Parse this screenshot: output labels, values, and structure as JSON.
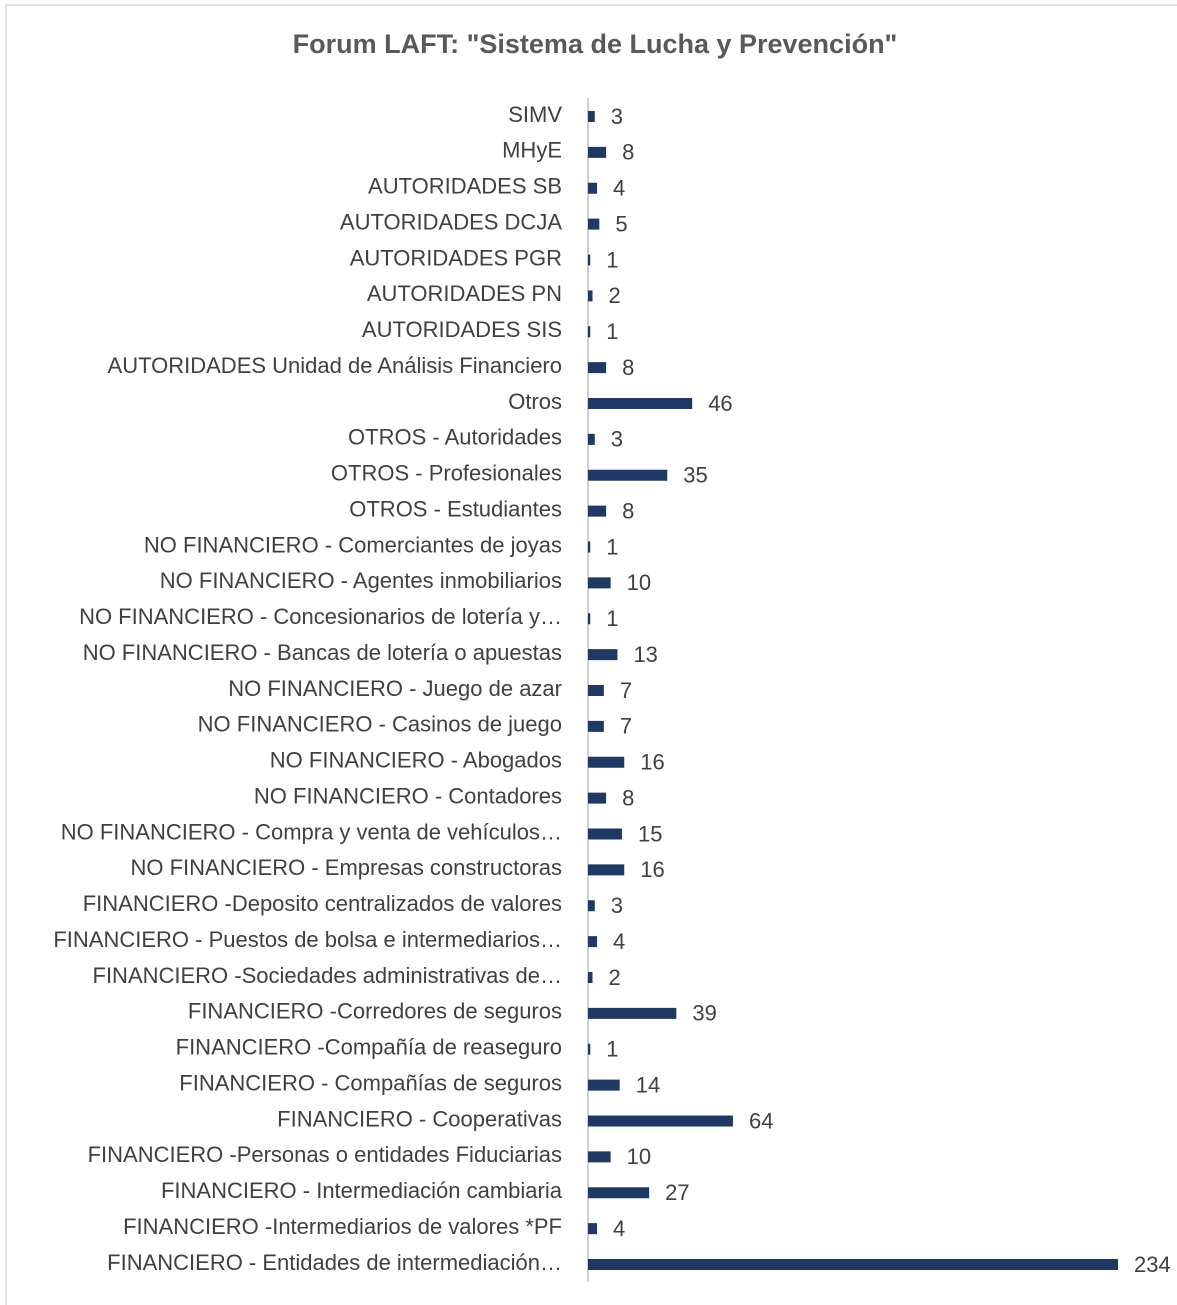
{
  "chart_data": {
    "type": "barh",
    "title": "Forum LAFT: \"Sistema de Lucha y Prevención\"",
    "categories": [
      "SIMV",
      "MHyE",
      "AUTORIDADES  SB",
      "AUTORIDADES DCJA",
      "AUTORIDADES PGR",
      "AUTORIDADES PN",
      "AUTORIDADES SIS",
      "AUTORIDADES Unidad de Análisis Financiero",
      "Otros",
      "OTROS - Autoridades",
      "OTROS - Profesionales",
      "OTROS - Estudiantes",
      "NO FINANCIERO - Comerciantes de joyas",
      "NO FINANCIERO - Agentes inmobiliarios",
      "NO FINANCIERO - Concesionarios de lotería y…",
      "NO FINANCIERO - Bancas de lotería o apuestas",
      "NO FINANCIERO - Juego de azar",
      "NO FINANCIERO - Casinos de juego",
      "NO FINANCIERO - Abogados",
      "NO FINANCIERO - Contadores",
      "NO FINANCIERO - Compra y venta de vehículos…",
      "NO FINANCIERO - Empresas constructoras",
      "FINANCIERO -Deposito centralizados de valores",
      "FINANCIERO - Puestos de bolsa e intermediarios…",
      "FINANCIERO -Sociedades administrativas de…",
      "FINANCIERO -Corredores de seguros",
      "FINANCIERO -Compañía de reaseguro",
      "FINANCIERO - Compañías de seguros",
      "FINANCIERO - Cooperativas",
      "FINANCIERO -Personas o entidades Fiduciarias",
      "FINANCIERO - Intermediación cambiaria",
      "FINANCIERO -Intermediarios de valores *PF",
      "FINANCIERO - Entidades de intermediación…"
    ],
    "values": [
      3,
      8,
      4,
      5,
      1,
      2,
      1,
      8,
      46,
      3,
      35,
      8,
      1,
      10,
      1,
      13,
      7,
      7,
      16,
      8,
      15,
      16,
      3,
      4,
      2,
      39,
      1,
      14,
      64,
      10,
      27,
      4,
      234
    ],
    "color": "#203864",
    "xlim": [
      0,
      234
    ]
  }
}
